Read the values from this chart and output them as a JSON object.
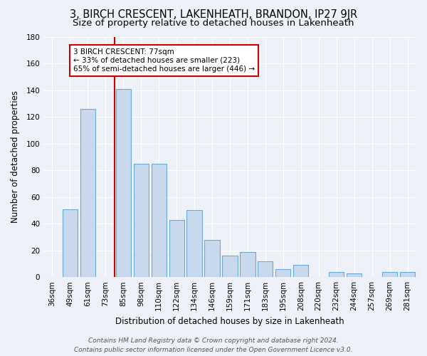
{
  "title": "3, BIRCH CRESCENT, LAKENHEATH, BRANDON, IP27 9JR",
  "subtitle": "Size of property relative to detached houses in Lakenheath",
  "xlabel": "Distribution of detached houses by size in Lakenheath",
  "ylabel": "Number of detached properties",
  "categories": [
    "36sqm",
    "49sqm",
    "61sqm",
    "73sqm",
    "85sqm",
    "98sqm",
    "110sqm",
    "122sqm",
    "134sqm",
    "146sqm",
    "159sqm",
    "171sqm",
    "183sqm",
    "195sqm",
    "208sqm",
    "220sqm",
    "232sqm",
    "244sqm",
    "257sqm",
    "269sqm",
    "281sqm"
  ],
  "values": [
    0,
    51,
    126,
    0,
    141,
    85,
    85,
    43,
    50,
    28,
    16,
    19,
    12,
    6,
    9,
    0,
    4,
    3,
    0,
    4,
    4
  ],
  "bar_color": "#c8d8ed",
  "bar_edge_color": "#6aaad4",
  "vline_color": "#cc0000",
  "annotation_text": "3 BIRCH CRESCENT: 77sqm\n← 33% of detached houses are smaller (223)\n65% of semi-detached houses are larger (446) →",
  "annotation_box_color": "#ffffff",
  "annotation_box_edge": "#cc0000",
  "ylim": [
    0,
    180
  ],
  "yticks": [
    0,
    20,
    40,
    60,
    80,
    100,
    120,
    140,
    160,
    180
  ],
  "footer1": "Contains HM Land Registry data © Crown copyright and database right 2024.",
  "footer2": "Contains public sector information licensed under the Open Government Licence v3.0.",
  "bg_color": "#eef2f8",
  "plot_bg_color": "#eef2f8",
  "grid_color": "#ffffff",
  "title_fontsize": 10.5,
  "subtitle_fontsize": 9.5,
  "axis_label_fontsize": 8.5,
  "tick_fontsize": 7.5,
  "annotation_fontsize": 7.5,
  "footer_fontsize": 6.5
}
